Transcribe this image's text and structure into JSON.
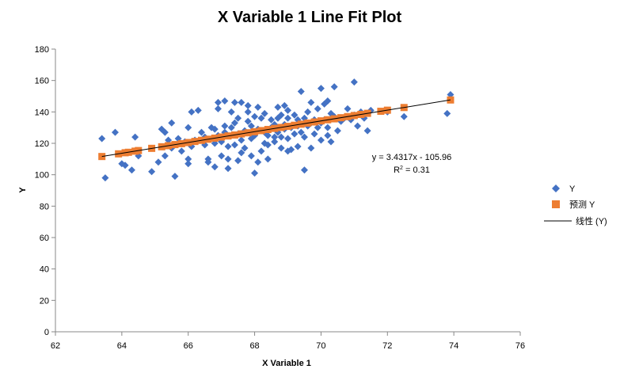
{
  "chart_data": {
    "type": "scatter",
    "title": "X Variable 1 Line Fit  Plot",
    "xlabel": "X Variable 1",
    "ylabel": "Y",
    "xlim": [
      62,
      76
    ],
    "ylim": [
      0,
      180
    ],
    "x_ticks": [
      62,
      64,
      66,
      68,
      70,
      72,
      74,
      76
    ],
    "y_ticks": [
      0,
      20,
      40,
      60,
      80,
      100,
      120,
      140,
      160,
      180
    ],
    "x_tick_labels": [
      "62",
      "64",
      "66",
      "68",
      "70",
      "72",
      "74",
      "76"
    ],
    "y_tick_labels": [
      "0",
      "20",
      "40",
      "60",
      "80",
      "100",
      "120",
      "140",
      "160",
      "180"
    ],
    "grid": false,
    "legend_position": "right",
    "legend": [
      "Y",
      "预测 Y",
      "线性 (Y)"
    ],
    "trendline": {
      "slope": 3.4317,
      "intercept": -105.96,
      "equation": "y = 3.4317x - 105.96",
      "r2_label": "R",
      "r2_sup": "2",
      "r2_value": " = 0.31",
      "x_range": [
        63.4,
        73.9
      ]
    },
    "colors": {
      "observed": "#4472C4",
      "predicted": "#ED7D31",
      "trendline": "#000000",
      "axis": "#888888"
    },
    "series": [
      {
        "name": "Y",
        "marker": "diamond",
        "points": [
          [
            63.4,
            123
          ],
          [
            63.5,
            98
          ],
          [
            63.8,
            127
          ],
          [
            64.0,
            107
          ],
          [
            64.1,
            106
          ],
          [
            64.3,
            103
          ],
          [
            64.4,
            124
          ],
          [
            64.5,
            112
          ],
          [
            64.9,
            102
          ],
          [
            65.1,
            108
          ],
          [
            65.2,
            129
          ],
          [
            65.3,
            112
          ],
          [
            65.3,
            127
          ],
          [
            65.4,
            122
          ],
          [
            65.5,
            133
          ],
          [
            65.5,
            117
          ],
          [
            65.6,
            99
          ],
          [
            65.7,
            123
          ],
          [
            65.8,
            115
          ],
          [
            65.9,
            121
          ],
          [
            66.0,
            130
          ],
          [
            66.0,
            110
          ],
          [
            66.0,
            107
          ],
          [
            66.1,
            140
          ],
          [
            66.1,
            118
          ],
          [
            66.2,
            122
          ],
          [
            66.3,
            141
          ],
          [
            66.4,
            127
          ],
          [
            66.5,
            124
          ],
          [
            66.5,
            119
          ],
          [
            66.6,
            110
          ],
          [
            66.6,
            108
          ],
          [
            66.7,
            130
          ],
          [
            66.8,
            129
          ],
          [
            66.8,
            120
          ],
          [
            66.8,
            105
          ],
          [
            66.9,
            146
          ],
          [
            66.9,
            142
          ],
          [
            66.9,
            125
          ],
          [
            67.0,
            112
          ],
          [
            67.0,
            121
          ],
          [
            67.1,
            147
          ],
          [
            67.1,
            131
          ],
          [
            67.1,
            127
          ],
          [
            67.2,
            104
          ],
          [
            67.2,
            110
          ],
          [
            67.2,
            118
          ],
          [
            67.3,
            140
          ],
          [
            67.3,
            130
          ],
          [
            67.4,
            146
          ],
          [
            67.4,
            133
          ],
          [
            67.4,
            119
          ],
          [
            67.5,
            109
          ],
          [
            67.5,
            136
          ],
          [
            67.5,
            126
          ],
          [
            67.6,
            146
          ],
          [
            67.6,
            114
          ],
          [
            67.6,
            122
          ],
          [
            67.7,
            128
          ],
          [
            67.7,
            117
          ],
          [
            67.8,
            144
          ],
          [
            67.8,
            140
          ],
          [
            67.8,
            134
          ],
          [
            67.9,
            112
          ],
          [
            67.9,
            123
          ],
          [
            67.9,
            131
          ],
          [
            68.0,
            101
          ],
          [
            68.0,
            125
          ],
          [
            68.0,
            137
          ],
          [
            68.1,
            143
          ],
          [
            68.1,
            129
          ],
          [
            68.1,
            108
          ],
          [
            68.2,
            136
          ],
          [
            68.2,
            115
          ],
          [
            68.3,
            127
          ],
          [
            68.3,
            139
          ],
          [
            68.3,
            120
          ],
          [
            68.4,
            125
          ],
          [
            68.4,
            119
          ],
          [
            68.4,
            110
          ],
          [
            68.5,
            130
          ],
          [
            68.5,
            135
          ],
          [
            68.6,
            121
          ],
          [
            68.6,
            124
          ],
          [
            68.6,
            132
          ],
          [
            68.7,
            143
          ],
          [
            68.7,
            127
          ],
          [
            68.7,
            136
          ],
          [
            68.8,
            124
          ],
          [
            68.8,
            117
          ],
          [
            68.8,
            138
          ],
          [
            68.9,
            144
          ],
          [
            68.9,
            129
          ],
          [
            68.9,
            132
          ],
          [
            69.0,
            141
          ],
          [
            69.0,
            115
          ],
          [
            69.0,
            123
          ],
          [
            69.0,
            136
          ],
          [
            69.1,
            130
          ],
          [
            69.1,
            116
          ],
          [
            69.2,
            138
          ],
          [
            69.2,
            126
          ],
          [
            69.3,
            118
          ],
          [
            69.3,
            135
          ],
          [
            69.3,
            131
          ],
          [
            69.4,
            153
          ],
          [
            69.4,
            127
          ],
          [
            69.5,
            103
          ],
          [
            69.5,
            136
          ],
          [
            69.5,
            124
          ],
          [
            69.6,
            131
          ],
          [
            69.6,
            140
          ],
          [
            69.7,
            146
          ],
          [
            69.7,
            117
          ],
          [
            69.7,
            133
          ],
          [
            69.8,
            135
          ],
          [
            69.8,
            126
          ],
          [
            69.9,
            142
          ],
          [
            69.9,
            130
          ],
          [
            70.0,
            155
          ],
          [
            70.0,
            122
          ],
          [
            70.0,
            133
          ],
          [
            70.1,
            145
          ],
          [
            70.1,
            135
          ],
          [
            70.2,
            125
          ],
          [
            70.2,
            147
          ],
          [
            70.2,
            130
          ],
          [
            70.3,
            121
          ],
          [
            70.3,
            139
          ],
          [
            70.4,
            156
          ],
          [
            70.4,
            137
          ],
          [
            70.5,
            128
          ],
          [
            70.6,
            134
          ],
          [
            70.7,
            136
          ],
          [
            70.8,
            142
          ],
          [
            70.9,
            135
          ],
          [
            71.0,
            159
          ],
          [
            71.0,
            138
          ],
          [
            71.1,
            131
          ],
          [
            71.2,
            140
          ],
          [
            71.3,
            136
          ],
          [
            71.4,
            128
          ],
          [
            71.5,
            141
          ],
          [
            72.0,
            140
          ],
          [
            72.5,
            137
          ],
          [
            73.8,
            139
          ],
          [
            73.9,
            151
          ]
        ]
      },
      {
        "name": "预测 Y",
        "marker": "square",
        "points": [
          [
            63.4,
            111.6
          ],
          [
            63.9,
            113.3
          ],
          [
            64.1,
            114.0
          ],
          [
            64.2,
            114.3
          ],
          [
            64.4,
            115.0
          ],
          [
            64.5,
            115.4
          ],
          [
            64.9,
            116.8
          ],
          [
            65.2,
            117.8
          ],
          [
            65.4,
            118.5
          ],
          [
            65.6,
            119.2
          ],
          [
            65.8,
            119.8
          ],
          [
            66.0,
            120.5
          ],
          [
            66.2,
            121.2
          ],
          [
            66.4,
            121.9
          ],
          [
            66.6,
            122.6
          ],
          [
            66.8,
            123.3
          ],
          [
            67.0,
            124.0
          ],
          [
            67.2,
            124.7
          ],
          [
            67.4,
            125.3
          ],
          [
            67.6,
            126.0
          ],
          [
            67.8,
            126.7
          ],
          [
            68.0,
            127.4
          ],
          [
            68.2,
            128.1
          ],
          [
            68.4,
            128.8
          ],
          [
            68.6,
            129.5
          ],
          [
            68.8,
            130.1
          ],
          [
            69.0,
            130.8
          ],
          [
            69.2,
            131.5
          ],
          [
            69.4,
            132.2
          ],
          [
            69.6,
            132.9
          ],
          [
            69.8,
            133.6
          ],
          [
            70.0,
            134.3
          ],
          [
            70.2,
            135.0
          ],
          [
            70.4,
            135.6
          ],
          [
            70.6,
            136.3
          ],
          [
            70.8,
            137.0
          ],
          [
            71.0,
            137.7
          ],
          [
            71.2,
            138.4
          ],
          [
            71.4,
            139.1
          ],
          [
            71.8,
            140.4
          ],
          [
            72.0,
            141.1
          ],
          [
            72.5,
            142.8
          ],
          [
            73.9,
            147.6
          ]
        ]
      }
    ]
  }
}
